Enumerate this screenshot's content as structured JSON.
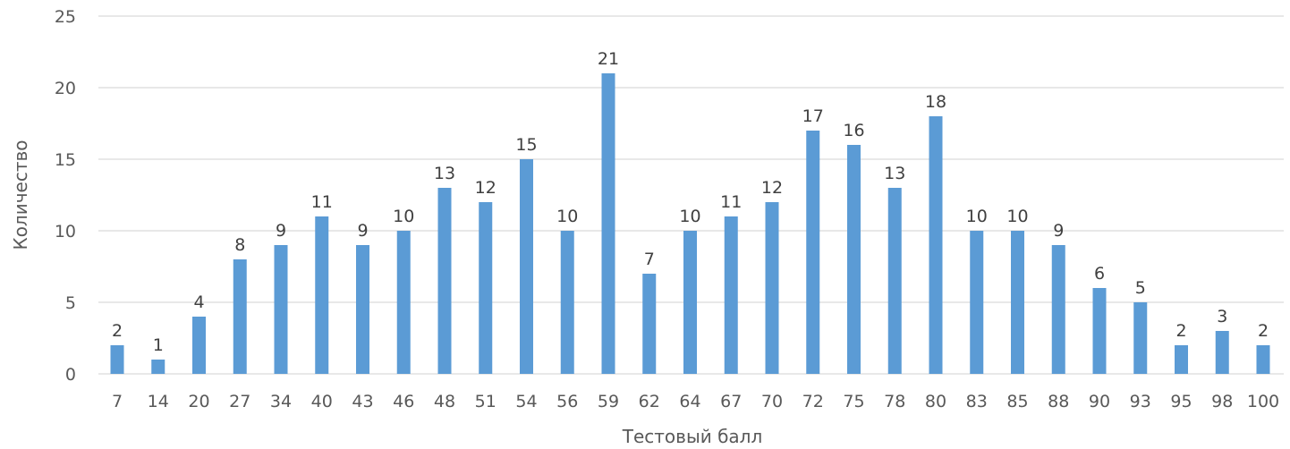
{
  "chart_data": {
    "type": "bar",
    "categories": [
      "7",
      "14",
      "20",
      "27",
      "34",
      "40",
      "43",
      "46",
      "48",
      "51",
      "54",
      "56",
      "59",
      "62",
      "64",
      "67",
      "70",
      "72",
      "75",
      "78",
      "80",
      "83",
      "85",
      "88",
      "90",
      "93",
      "95",
      "98",
      "100"
    ],
    "values": [
      2,
      1,
      4,
      8,
      9,
      11,
      9,
      10,
      13,
      12,
      15,
      10,
      21,
      7,
      10,
      11,
      12,
      17,
      16,
      13,
      18,
      10,
      10,
      9,
      6,
      5,
      2,
      3,
      2
    ],
    "xlabel": "Тестовый балл",
    "ylabel": "Количество",
    "ylim": [
      0,
      25
    ],
    "yticks": [
      "0",
      "5",
      "10",
      "15",
      "20",
      "25"
    ],
    "grid": true,
    "colors": {
      "bar": "#5b9bd5",
      "grid": "#d9d9d9"
    }
  }
}
